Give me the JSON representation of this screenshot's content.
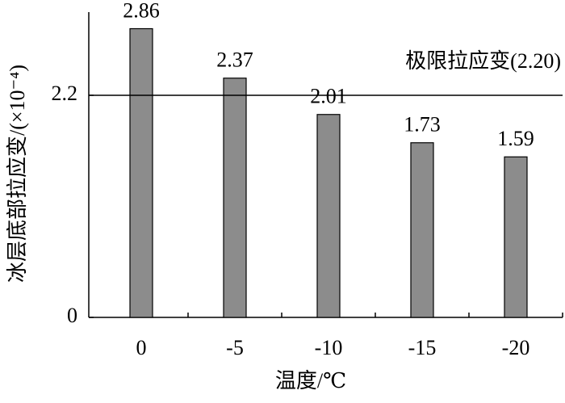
{
  "chart_data": {
    "type": "bar",
    "y_label": "冰层底部拉应变/(×10⁻⁴)",
    "x_label": "温度/℃",
    "categories": [
      "0",
      "-5",
      "-10",
      "-15",
      "-20"
    ],
    "values": [
      2.86,
      2.37,
      2.01,
      1.73,
      1.59
    ],
    "color": "#8c8c8c",
    "ylim": [
      0,
      3.0
    ],
    "yticks": [
      0,
      2.2
    ],
    "reference_line": {
      "value": 2.2,
      "label": "极限拉应变(2.20)"
    }
  }
}
